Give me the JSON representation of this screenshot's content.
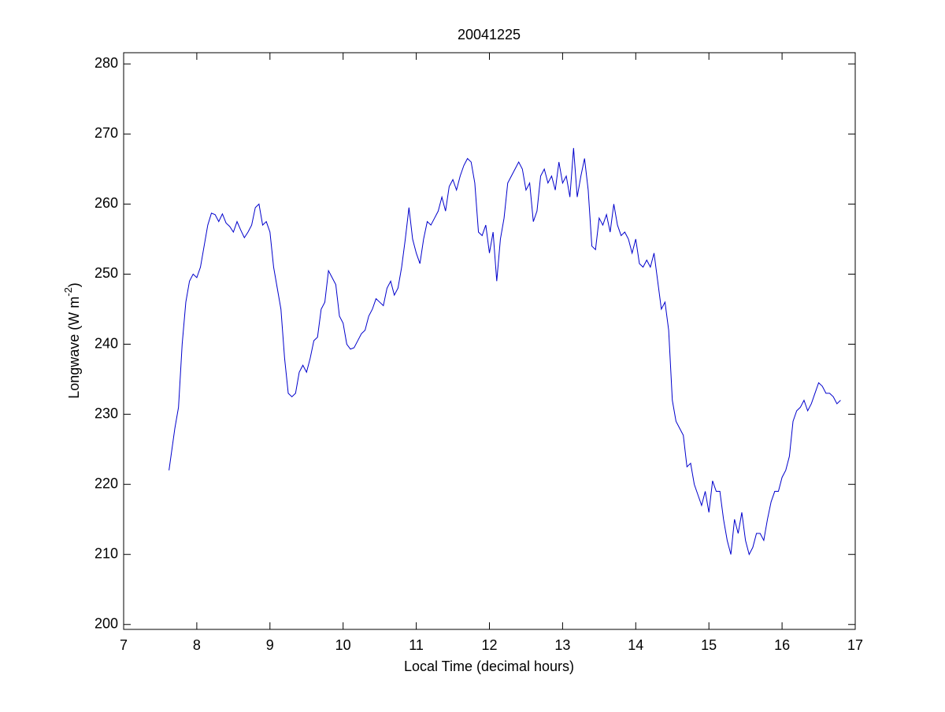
{
  "chart_data": {
    "type": "line",
    "title": "20041225",
    "xlabel": "Local Time (decimal hours)",
    "ylabel_parts": [
      "Longwave (W m",
      "-2",
      ")"
    ],
    "xlim": [
      7,
      17
    ],
    "ylim": [
      199.3,
      281.6
    ],
    "xticks": [
      7,
      8,
      9,
      10,
      11,
      12,
      13,
      14,
      15,
      16,
      17
    ],
    "yticks": [
      200,
      210,
      220,
      230,
      240,
      250,
      260,
      270,
      280
    ],
    "grid": false,
    "x": [
      7.62,
      7.7,
      7.75,
      7.8,
      7.85,
      7.9,
      7.95,
      8.0,
      8.05,
      8.1,
      8.15,
      8.2,
      8.25,
      8.3,
      8.35,
      8.4,
      8.45,
      8.5,
      8.55,
      8.6,
      8.65,
      8.7,
      8.75,
      8.8,
      8.85,
      8.9,
      8.95,
      9.0,
      9.05,
      9.1,
      9.15,
      9.2,
      9.25,
      9.3,
      9.35,
      9.4,
      9.45,
      9.5,
      9.55,
      9.6,
      9.65,
      9.7,
      9.75,
      9.8,
      9.85,
      9.9,
      9.95,
      10.0,
      10.05,
      10.1,
      10.15,
      10.2,
      10.25,
      10.3,
      10.35,
      10.4,
      10.45,
      10.5,
      10.55,
      10.6,
      10.65,
      10.7,
      10.75,
      10.8,
      10.85,
      10.9,
      10.95,
      11.0,
      11.05,
      11.1,
      11.15,
      11.2,
      11.25,
      11.3,
      11.35,
      11.4,
      11.45,
      11.5,
      11.55,
      11.6,
      11.65,
      11.7,
      11.75,
      11.8,
      11.85,
      11.9,
      11.95,
      12.0,
      12.05,
      12.1,
      12.15,
      12.2,
      12.25,
      12.3,
      12.35,
      12.4,
      12.45,
      12.5,
      12.55,
      12.6,
      12.65,
      12.7,
      12.75,
      12.8,
      12.85,
      12.9,
      12.95,
      13.0,
      13.05,
      13.1,
      13.15,
      13.2,
      13.25,
      13.3,
      13.35,
      13.4,
      13.45,
      13.5,
      13.55,
      13.6,
      13.65,
      13.7,
      13.75,
      13.8,
      13.85,
      13.9,
      13.95,
      14.0,
      14.05,
      14.1,
      14.15,
      14.2,
      14.25,
      14.3,
      14.35,
      14.4,
      14.45,
      14.5,
      14.55,
      14.6,
      14.65,
      14.7,
      14.75,
      14.8,
      14.85,
      14.9,
      14.95,
      15.0,
      15.05,
      15.1,
      15.15,
      15.2,
      15.25,
      15.3,
      15.35,
      15.4,
      15.45,
      15.5,
      15.55,
      15.6,
      15.65,
      15.7,
      15.75,
      15.8,
      15.85,
      15.9,
      15.95,
      16.0,
      16.05,
      16.1,
      16.15,
      16.2,
      16.25,
      16.3,
      16.35,
      16.4,
      16.45,
      16.5,
      16.55,
      16.6,
      16.65,
      16.7,
      16.75,
      16.8
    ],
    "series": [
      {
        "color": "#0000cc",
        "values": [
          222,
          228,
          231,
          240,
          246,
          249,
          250,
          249.5,
          251,
          254,
          257,
          258.7,
          258.5,
          257.5,
          258.6,
          257.3,
          256.8,
          256,
          257.5,
          256.3,
          255.2,
          256,
          257,
          259.5,
          260,
          257,
          257.5,
          256,
          251,
          248,
          245,
          238,
          233,
          232.5,
          233,
          236,
          237,
          236,
          238,
          240.5,
          241,
          245,
          246,
          250.5,
          249.5,
          248.5,
          244,
          243,
          240,
          239.3,
          239.5,
          240.5,
          241.5,
          242,
          244,
          245,
          246.5,
          246,
          245.5,
          248,
          249,
          247,
          248,
          251,
          255,
          259.5,
          255,
          253,
          251.5,
          255,
          257.5,
          257,
          258,
          259,
          261,
          259,
          262.5,
          263.5,
          262,
          264,
          265.5,
          266.5,
          266,
          263,
          256,
          255.5,
          257,
          253,
          256,
          249,
          255,
          258,
          263,
          264,
          265,
          266,
          265,
          262,
          263,
          257.5,
          259,
          264,
          265,
          263,
          264,
          262,
          266,
          263,
          264,
          261,
          268,
          261,
          264,
          266.5,
          262,
          254,
          253.5,
          258,
          257,
          258.5,
          256,
          260,
          257,
          255.5,
          256,
          255,
          253,
          255,
          251.5,
          251,
          252,
          251,
          253,
          249,
          245,
          246,
          242,
          232,
          229,
          228,
          227,
          222.5,
          223,
          220,
          218.5,
          217,
          219,
          216,
          220.5,
          219,
          219,
          215,
          212,
          210,
          215,
          213,
          216,
          212,
          210,
          211,
          213,
          213,
          212,
          215,
          217.5,
          219,
          219,
          221,
          222,
          224,
          229,
          230.5,
          231,
          232,
          230.5,
          231.5,
          233,
          234.5,
          234,
          233,
          233,
          232.5,
          231.5,
          232
        ]
      }
    ]
  }
}
